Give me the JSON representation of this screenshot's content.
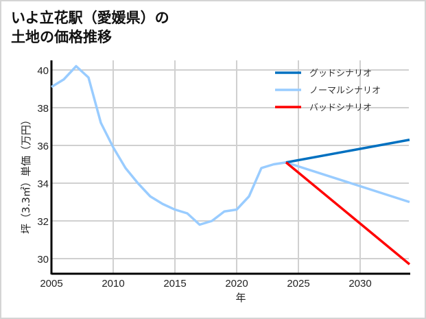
{
  "title_line1": "いよ立花駅（愛媛県）の",
  "title_line2": "土地の価格推移",
  "chart_data": {
    "type": "line",
    "title": "いよ立花駅（愛媛県）の土地の価格推移",
    "xlabel": "年",
    "ylabel": "坪（3.3㎡）単価（万円）",
    "xlim": [
      2005,
      2034
    ],
    "ylim": [
      29.2,
      40.7
    ],
    "x_ticks": [
      2005,
      2010,
      2015,
      2020,
      2025,
      2030
    ],
    "y_ticks": [
      30,
      32,
      34,
      36,
      38,
      40
    ],
    "grid": true,
    "legend_position": "upper right",
    "series": [
      {
        "name": "ノーマルシナリオ",
        "color": "#99ccff",
        "x": [
          2005,
          2006,
          2007,
          2008,
          2009,
          2010,
          2011,
          2012,
          2013,
          2014,
          2015,
          2016,
          2017,
          2018,
          2019,
          2020,
          2021,
          2022,
          2023,
          2024,
          2034
        ],
        "values": [
          39.1,
          39.5,
          40.2,
          39.6,
          37.2,
          35.9,
          34.8,
          34.0,
          33.3,
          32.9,
          32.6,
          32.4,
          31.8,
          32.0,
          32.5,
          32.6,
          33.3,
          34.8,
          35.0,
          35.1,
          33.0
        ]
      },
      {
        "name": "グッドシナリオ",
        "color": "#0070c0",
        "x": [
          2024,
          2034
        ],
        "values": [
          35.1,
          36.3
        ]
      },
      {
        "name": "バッドシナリオ",
        "color": "#ff0000",
        "x": [
          2024,
          2034
        ],
        "values": [
          35.1,
          29.7
        ]
      }
    ]
  }
}
